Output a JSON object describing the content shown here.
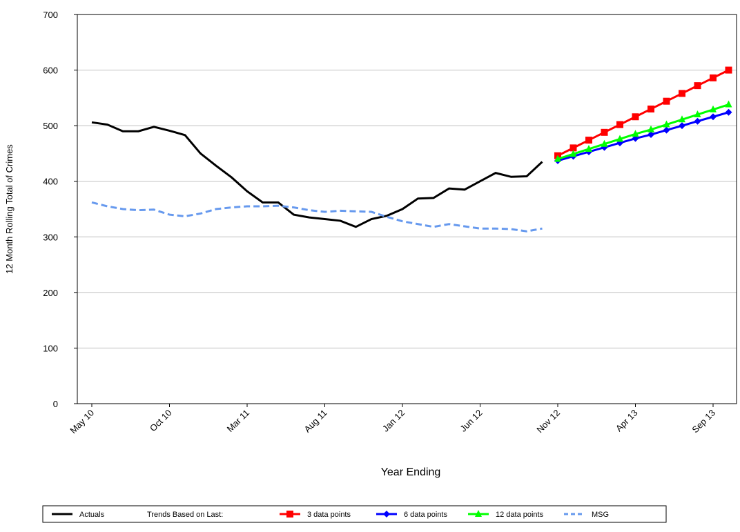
{
  "chart_data": {
    "type": "line",
    "y_label": "12 Month Rolling Total of Crimes",
    "x_label": "Year Ending",
    "legend_note": "Trends Based on Last:",
    "categories": [
      "May 10",
      null,
      null,
      null,
      null,
      "Oct 10",
      null,
      null,
      null,
      null,
      "Mar 11",
      null,
      null,
      null,
      null,
      "Aug 11",
      null,
      null,
      null,
      null,
      "Jan 12",
      null,
      null,
      null,
      null,
      "Jun 12",
      null,
      null,
      null,
      null,
      "Nov 12",
      null,
      null,
      null,
      null,
      "Apr 13",
      null,
      null,
      null,
      null,
      "Sep 13",
      null
    ],
    "ylim": [
      0,
      700
    ],
    "yticks": [
      0,
      100,
      200,
      300,
      400,
      500,
      600,
      700
    ],
    "grid": true,
    "legend": "bottom",
    "series": [
      {
        "name": "Actuals",
        "color": "#000000",
        "marker": "none",
        "dash": false,
        "values": [
          506,
          502,
          490,
          490,
          498,
          491,
          483,
          450,
          428,
          407,
          382,
          362,
          362,
          340,
          335,
          332,
          329,
          318,
          332,
          338,
          350,
          369,
          370,
          387,
          385,
          400,
          415,
          408,
          409,
          435,
          null,
          null,
          null,
          null,
          null,
          null,
          null,
          null,
          null,
          null,
          null,
          null
        ]
      },
      {
        "name": "3 data points",
        "color": "#ff0000",
        "marker": "square",
        "dash": false,
        "values": [
          null,
          null,
          null,
          null,
          null,
          null,
          null,
          null,
          null,
          null,
          null,
          null,
          null,
          null,
          null,
          null,
          null,
          null,
          null,
          null,
          null,
          null,
          null,
          null,
          null,
          null,
          null,
          null,
          null,
          null,
          446,
          460,
          474,
          488,
          502,
          516,
          530,
          544,
          558,
          572,
          586,
          600
        ]
      },
      {
        "name": "6 data points",
        "color": "#0000ff",
        "marker": "diamond",
        "dash": false,
        "values": [
          null,
          null,
          null,
          null,
          null,
          null,
          null,
          null,
          null,
          null,
          null,
          null,
          null,
          null,
          null,
          null,
          null,
          null,
          null,
          null,
          null,
          null,
          null,
          null,
          null,
          null,
          null,
          null,
          null,
          null,
          437,
          445,
          453,
          461,
          469,
          477,
          484,
          492,
          500,
          508,
          516,
          524
        ]
      },
      {
        "name": "12 data points",
        "color": "#00ff00",
        "marker": "triangle",
        "dash": false,
        "values": [
          null,
          null,
          null,
          null,
          null,
          null,
          null,
          null,
          null,
          null,
          null,
          null,
          null,
          null,
          null,
          null,
          null,
          null,
          null,
          null,
          null,
          null,
          null,
          null,
          null,
          null,
          null,
          null,
          null,
          null,
          440,
          449,
          458,
          467,
          476,
          485,
          493,
          502,
          511,
          520,
          529,
          538
        ]
      },
      {
        "name": "MSG",
        "color": "#6699ee",
        "marker": "none",
        "dash": true,
        "values": [
          362,
          355,
          350,
          348,
          349,
          340,
          337,
          342,
          350,
          353,
          355,
          355,
          356,
          353,
          348,
          345,
          347,
          346,
          345,
          336,
          328,
          323,
          318,
          323,
          319,
          315,
          315,
          314,
          310,
          315,
          null,
          null,
          null,
          null,
          null,
          null,
          null,
          null,
          null,
          null,
          null,
          null
        ]
      }
    ]
  }
}
